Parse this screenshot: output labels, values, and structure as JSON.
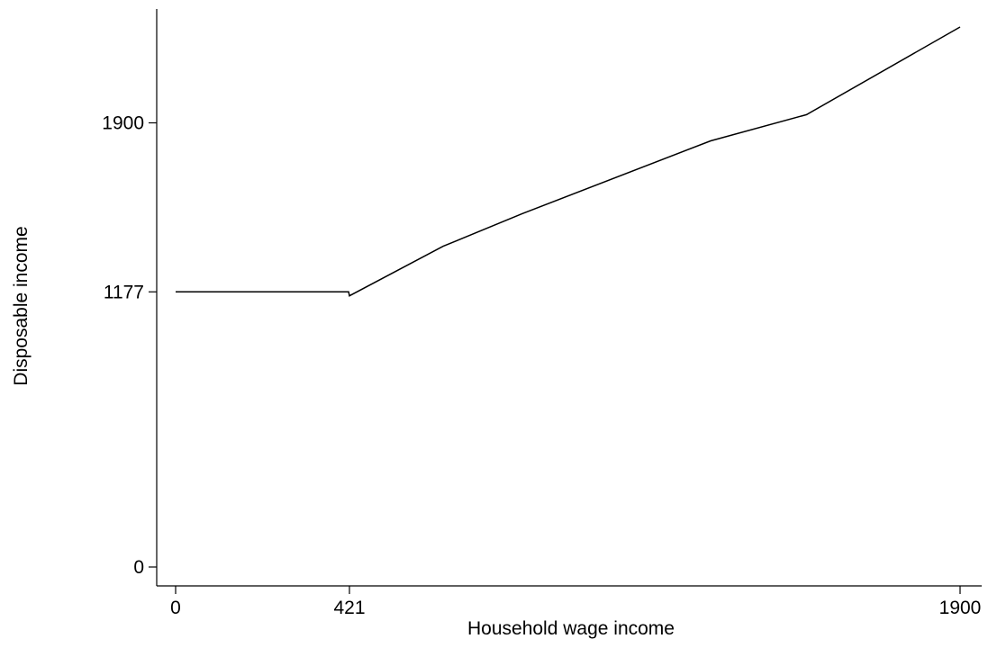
{
  "chart_data": {
    "type": "line",
    "title": "",
    "xlabel": "Household wage income",
    "ylabel": "Disposable income",
    "xlim": [
      0,
      1900
    ],
    "ylim": [
      0,
      2310
    ],
    "grid": false,
    "x_ticks": [
      {
        "value": 0,
        "label": "0"
      },
      {
        "value": 421,
        "label": "421"
      },
      {
        "value": 1900,
        "label": "1900"
      }
    ],
    "y_ticks": [
      {
        "value": 0,
        "label": "0"
      },
      {
        "value": 1177,
        "label": "1177"
      },
      {
        "value": 1900,
        "label": "1900"
      }
    ],
    "series": [
      {
        "color": "#000000",
        "x": [
          0,
          419,
          421,
          648,
          840,
          1296,
          1528,
          1900
        ],
        "y": [
          1177,
          1177,
          1160,
          1372,
          1512,
          1823,
          1935,
          2310
        ]
      }
    ]
  }
}
